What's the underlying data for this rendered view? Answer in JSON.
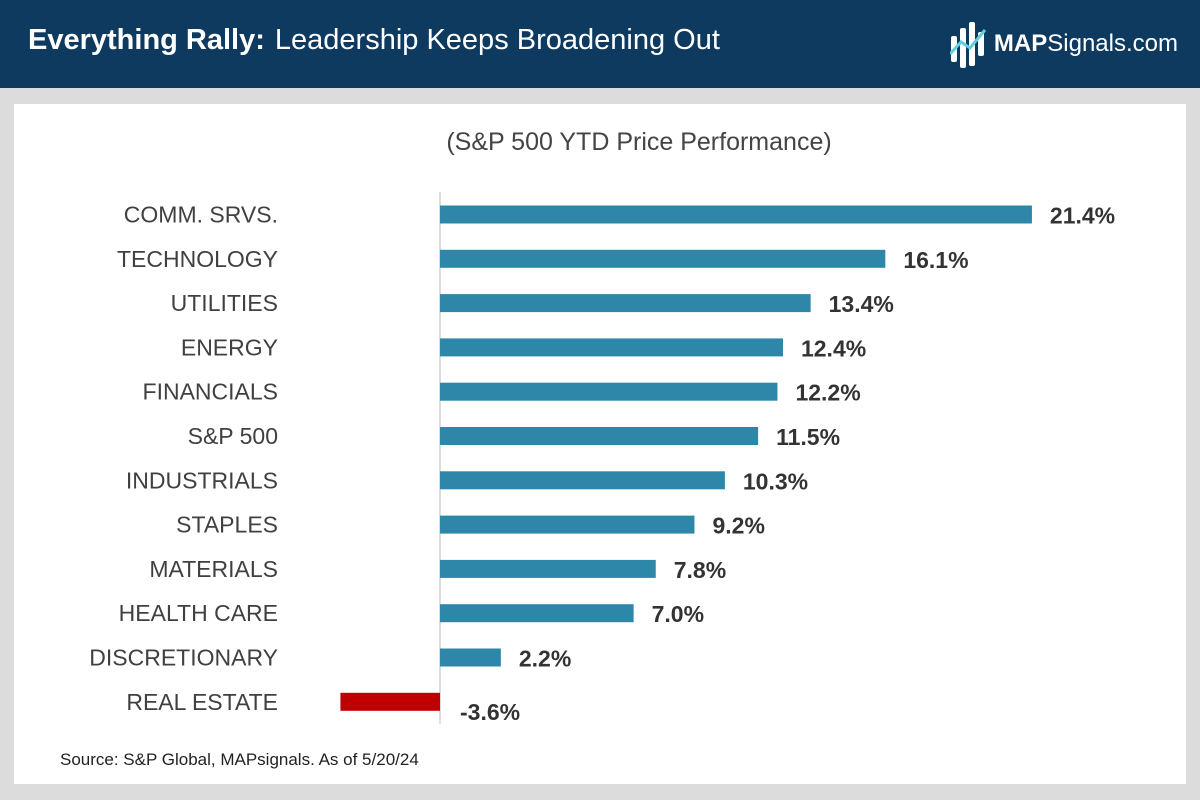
{
  "header": {
    "title_bold": "Everything Rally:",
    "title_rest": "Leadership Keeps Broadening Out",
    "logo_bold": "MAP",
    "logo_rest": "Signals.com"
  },
  "colors": {
    "header_bg": "#0f3a5f",
    "positive_bar": "#2e86a8",
    "negative_bar": "#c00000"
  },
  "chart_data": {
    "type": "bar",
    "orientation": "horizontal",
    "title": "(S&P 500 YTD Price Performance)",
    "categories": [
      "COMM. SRVS.",
      "TECHNOLOGY",
      "UTILITIES",
      "ENERGY",
      "FINANCIALS",
      "S&P 500",
      "INDUSTRIALS",
      "STAPLES",
      "MATERIALS",
      "HEALTH CARE",
      "DISCRETIONARY",
      "REAL ESTATE"
    ],
    "values": [
      21.4,
      16.1,
      13.4,
      12.4,
      12.2,
      11.5,
      10.3,
      9.2,
      7.8,
      7.0,
      2.2,
      -3.6
    ],
    "value_labels": [
      "21.4%",
      "16.1%",
      "13.4%",
      "12.4%",
      "12.2%",
      "11.5%",
      "10.3%",
      "9.2%",
      "7.8%",
      "7.0%",
      "2.2%",
      "-3.6%"
    ],
    "unit": "%",
    "xlim": [
      -3.6,
      21.4
    ],
    "xlabel": "",
    "ylabel": "",
    "grid": false,
    "legend": "none"
  },
  "source": "Source: S&P Global, MAPsignals. As of 5/20/24"
}
